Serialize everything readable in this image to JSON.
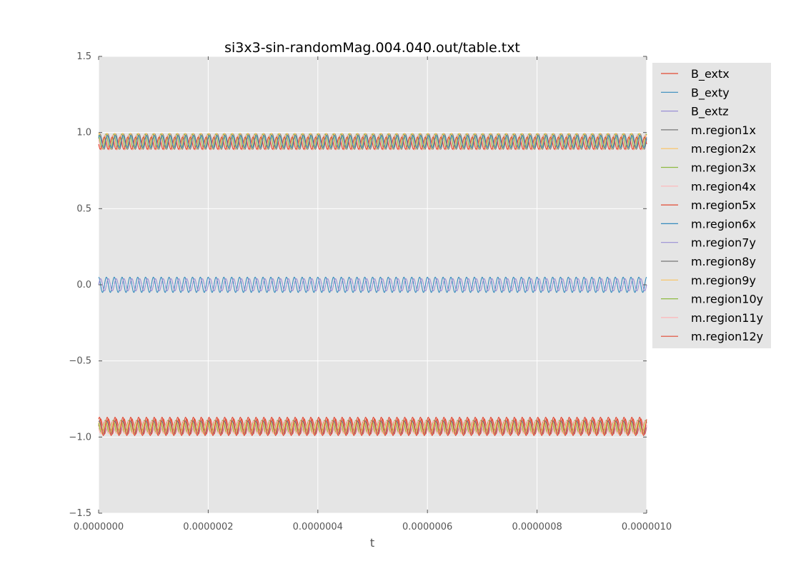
{
  "chart_data": {
    "type": "line",
    "title": "si3x3-sin-randomMag.004.040.out/table.txt",
    "xlabel": "t",
    "ylabel": "",
    "xlim": [
      0,
      1e-06
    ],
    "ylim": [
      -1.5,
      1.5
    ],
    "x_ticks": [
      "0.0000000",
      "0.0000002",
      "0.0000004",
      "0.0000006",
      "0.0000008",
      "0.0000010"
    ],
    "x_tick_values": [
      0,
      2e-07,
      4e-07,
      6e-07,
      8e-07,
      1e-06
    ],
    "y_ticks": [
      "−1.5",
      "−1.0",
      "−0.5",
      "0.0",
      "0.5",
      "1.0",
      "1.5"
    ],
    "y_tick_values": [
      -1.5,
      -1.0,
      -0.5,
      0.0,
      0.5,
      1.0,
      1.5
    ],
    "grid": true,
    "legend_position": "outside-right",
    "background": "#e5e5e5",
    "oscillation_cycles": 70,
    "series": [
      {
        "name": "B_extx",
        "color": "#e24a33",
        "center": -0.93,
        "amplitude": 0.05,
        "phase": 0.0
      },
      {
        "name": "B_exty",
        "color": "#348abd",
        "center": 0.0,
        "amplitude": 0.05,
        "phase": 1.5708
      },
      {
        "name": "B_extz",
        "color": "#988ed5",
        "center": 0.0,
        "amplitude": 0.04,
        "phase": 0.0
      },
      {
        "name": "m.region1x",
        "color": "#777777",
        "center": 0.94,
        "amplitude": 0.05,
        "phase": 0.4
      },
      {
        "name": "m.region2x",
        "color": "#fbc15e",
        "center": 0.945,
        "amplitude": 0.05,
        "phase": 1.1
      },
      {
        "name": "m.region3x",
        "color": "#8eba42",
        "center": 0.94,
        "amplitude": 0.05,
        "phase": 2.0
      },
      {
        "name": "m.region4x",
        "color": "#ffb5b8",
        "center": 0.935,
        "amplitude": 0.05,
        "phase": 2.7
      },
      {
        "name": "m.region5x",
        "color": "#e24a33",
        "center": 0.93,
        "amplitude": 0.04,
        "phase": 3.3
      },
      {
        "name": "m.region6x",
        "color": "#348abd",
        "center": 0.94,
        "amplitude": 0.04,
        "phase": 0.8
      },
      {
        "name": "m.region7y",
        "color": "#988ed5",
        "center": -0.94,
        "amplitude": 0.04,
        "phase": 0.5
      },
      {
        "name": "m.region8y",
        "color": "#777777",
        "center": -0.935,
        "amplitude": 0.04,
        "phase": 1.2
      },
      {
        "name": "m.region9y",
        "color": "#fbc15e",
        "center": -0.94,
        "amplitude": 0.04,
        "phase": 1.9
      },
      {
        "name": "m.region10y",
        "color": "#8eba42",
        "center": -0.93,
        "amplitude": 0.04,
        "phase": 2.6
      },
      {
        "name": "m.region11y",
        "color": "#ffb5b8",
        "center": -0.935,
        "amplitude": 0.04,
        "phase": 3.2
      },
      {
        "name": "m.region12y",
        "color": "#e24a33",
        "center": -0.93,
        "amplitude": 0.06,
        "phase": 0.9
      }
    ]
  }
}
